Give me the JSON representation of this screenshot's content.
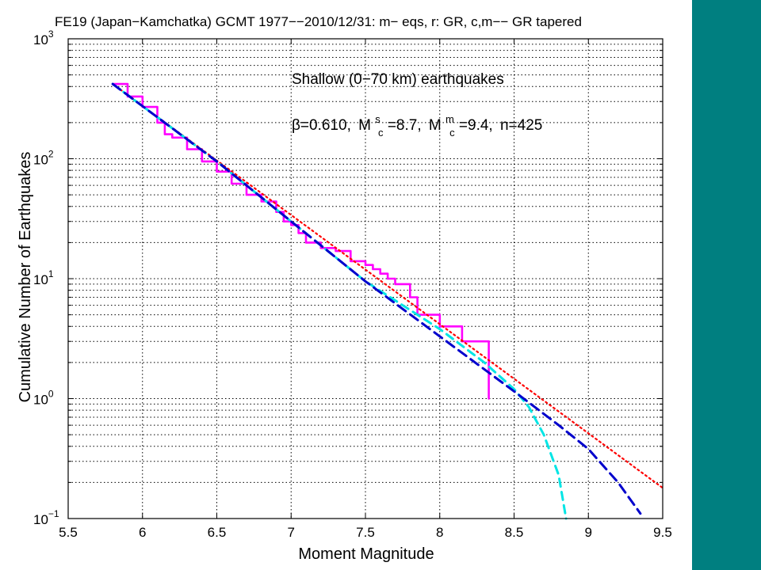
{
  "colors": {
    "sidebar": "#007f80",
    "observed": "#ff00ff",
    "gr": "#ff0000",
    "gr_tapered_c": "#00e5e5",
    "gr_tapered_m": "#0000cc"
  },
  "chart_data": {
    "type": "line",
    "title": "FE19 (Japan−Kamchatka) GCMT 1977−−2010/12/31: m− eqs, r: GR, c,m−− GR tapered",
    "xlabel": "Moment Magnitude",
    "ylabel": "Cumulative Number of Earthquakes",
    "xlim": [
      5.5,
      9.5
    ],
    "ylim": [
      0.1,
      1000
    ],
    "yscale": "log",
    "grid": true,
    "x_ticks": [
      "5.5",
      "6",
      "6.5",
      "7",
      "7.5",
      "8",
      "8.5",
      "9",
      "9.5"
    ],
    "y_ticks": [
      {
        "base": "10",
        "exp": "−1"
      },
      {
        "base": "10",
        "exp": "0"
      },
      {
        "base": "10",
        "exp": "1"
      },
      {
        "base": "10",
        "exp": "2"
      },
      {
        "base": "10",
        "exp": "3"
      }
    ],
    "annotations": {
      "line1": "Shallow (0−70 km) earthquakes",
      "line2": {
        "beta": "β=0.610,",
        "ms_label": "M",
        "ms_sup": "s",
        "ms_sub": "c",
        "ms_value": "=8.7,",
        "mm_label": "M",
        "mm_sup": "m",
        "mm_sub": "c",
        "mm_value": "=9.4,",
        "n": "n=425"
      }
    },
    "series": [
      {
        "style": "solid",
        "x": [
          5.8,
          5.9,
          6.0,
          6.1,
          6.15,
          6.2,
          6.3,
          6.4,
          6.5,
          6.6,
          6.7,
          6.8,
          6.9,
          6.95,
          7.0,
          7.05,
          7.1,
          7.15,
          7.2,
          7.3,
          7.4,
          7.45,
          7.5,
          7.55,
          7.6,
          7.65,
          7.7,
          7.75,
          7.8,
          7.85,
          7.9,
          8.0,
          8.1,
          8.15,
          8.3,
          8.33
        ],
        "y": [
          420,
          330,
          270,
          200,
          160,
          150,
          120,
          95,
          78,
          62,
          50,
          44,
          36,
          30,
          28,
          24,
          20,
          20,
          18,
          17,
          14,
          14,
          13,
          12,
          11,
          10,
          9,
          9,
          7,
          5,
          5,
          4,
          4,
          3,
          3,
          1
        ]
      },
      {
        "style": "dotted",
        "x": [
          5.8,
          9.5
        ],
        "y": [
          420,
          0.18
        ]
      },
      {
        "style": "dashed",
        "x": [
          5.8,
          6.5,
          7.0,
          7.5,
          8.0,
          8.3,
          8.5,
          8.6,
          8.7,
          8.8,
          8.85
        ],
        "y": [
          420,
          95,
          30,
          9.5,
          3.8,
          2.0,
          1.2,
          0.85,
          0.5,
          0.23,
          0.1
        ]
      },
      {
        "style": "dashed",
        "x": [
          5.8,
          6.5,
          7.0,
          7.5,
          8.0,
          8.5,
          8.8,
          9.0,
          9.2,
          9.35
        ],
        "y": [
          420,
          95,
          30,
          9.5,
          3.3,
          1.15,
          0.6,
          0.38,
          0.2,
          0.11
        ]
      }
    ]
  }
}
